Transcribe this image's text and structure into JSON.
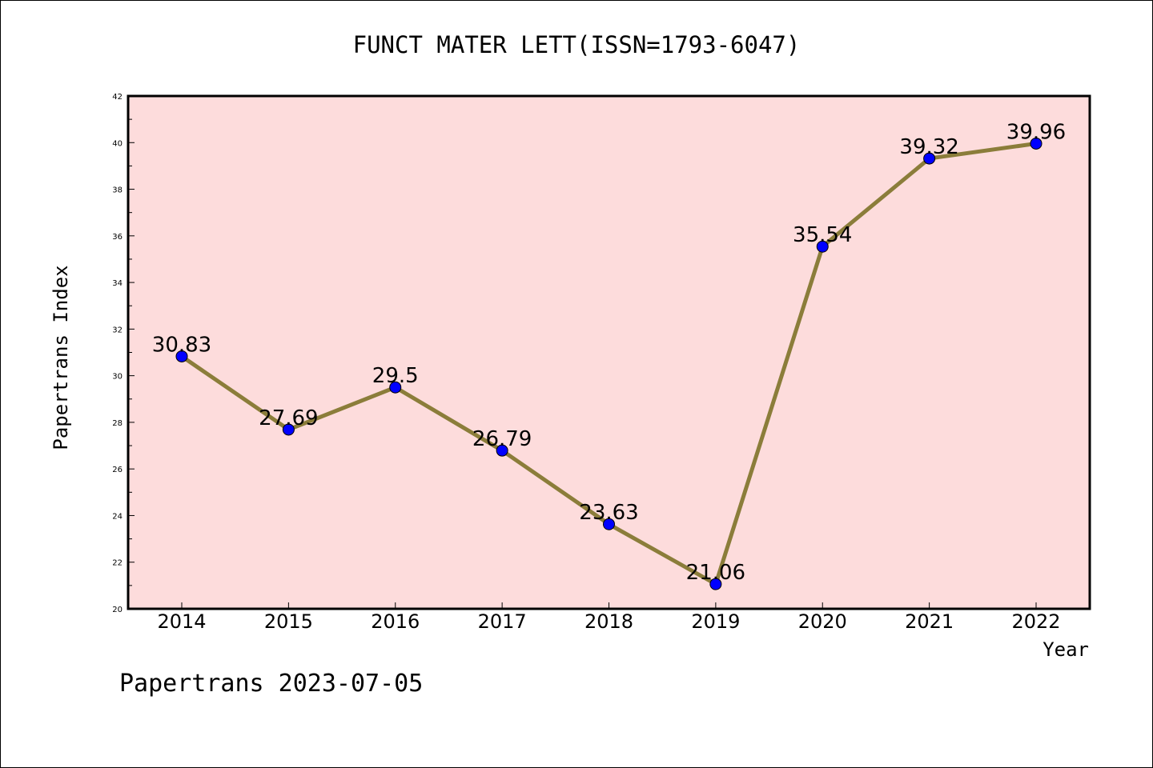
{
  "chart_data": {
    "type": "line",
    "title": "FUNCT MATER LETT(ISSN=1793-6047)",
    "xlabel": "Year",
    "ylabel": "Papertrans Index",
    "footer": "Papertrans 2023-07-05",
    "categories": [
      "2014",
      "2015",
      "2016",
      "2017",
      "2018",
      "2019",
      "2020",
      "2021",
      "2022"
    ],
    "series": [
      {
        "values": [
          30.83,
          27.69,
          29.5,
          26.79,
          23.63,
          21.06,
          35.54,
          39.32,
          39.96
        ],
        "labels": [
          "30.83",
          "27.69",
          "29.5",
          "26.79",
          "23.63",
          "21.06",
          "35.54",
          "39.32",
          "39.96"
        ],
        "line_color": "#8b7d3a",
        "marker_color": "#0000ff"
      }
    ],
    "ylim": [
      20,
      42
    ],
    "yticks": [
      20,
      22,
      24,
      26,
      28,
      30,
      32,
      34,
      36,
      38,
      40,
      42
    ],
    "plot_background": "#fddcdc",
    "grid": false,
    "legend": "none"
  }
}
